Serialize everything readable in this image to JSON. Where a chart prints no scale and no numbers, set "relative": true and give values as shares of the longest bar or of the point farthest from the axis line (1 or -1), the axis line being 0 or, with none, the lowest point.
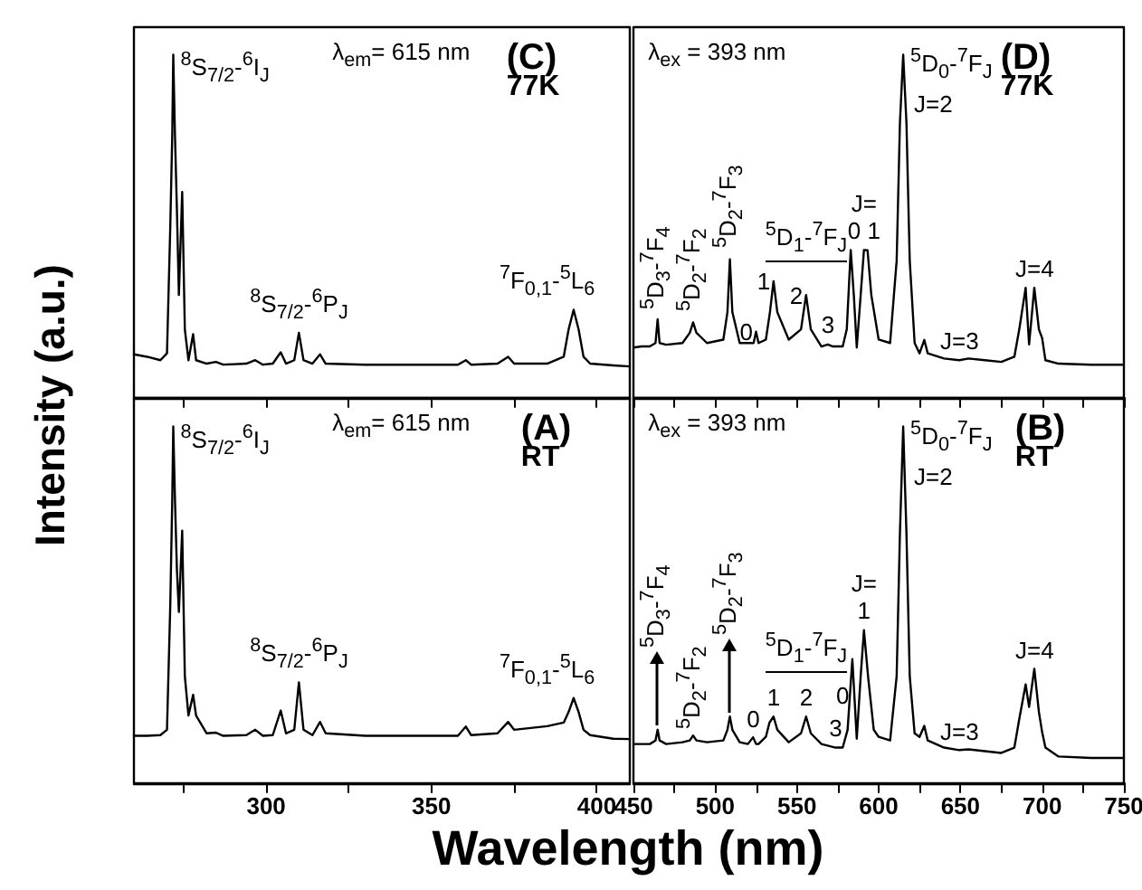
{
  "chart_data": [
    {
      "type": "line",
      "relative": true,
      "title": "(C)",
      "subtitle": "77K",
      "ylabel": "Intensity (a.u.)",
      "xlim": [
        260,
        410
      ],
      "xticks": [
        {
          "value": 275,
          "label": null
        },
        {
          "value": 300,
          "label": null
        },
        {
          "value": 325,
          "label": null
        },
        {
          "value": 350,
          "label": null
        },
        {
          "value": 375,
          "label": null
        },
        {
          "value": 400,
          "label": null
        }
      ],
      "tick_labels": false,
      "grid": false,
      "marker": "none",
      "line_style": "solid",
      "series": [
        {
          "color": "#000000",
          "x": [
            260,
            264,
            268,
            270,
            271,
            271.6,
            271.9,
            272.4,
            273,
            273.6,
            274.6,
            275.4,
            276.5,
            277.9,
            278.8,
            282,
            284.8,
            287,
            294,
            296.7,
            299,
            302,
            304.4,
            306,
            308.5,
            309.9,
            311.3,
            314,
            316.3,
            318,
            330,
            350,
            358,
            360.4,
            362,
            370,
            373.2,
            375,
            385,
            390,
            391.5,
            393,
            394.5,
            396,
            398,
            405,
            410
          ],
          "values": [
            0.127,
            0.12,
            0.11,
            0.13,
            0.5,
            0.77,
            1.0,
            0.77,
            0.55,
            0.3,
            0.6,
            0.2,
            0.11,
            0.186,
            0.11,
            0.1,
            0.105,
            0.097,
            0.1,
            0.11,
            0.097,
            0.1,
            0.133,
            0.1,
            0.11,
            0.19,
            0.11,
            0.1,
            0.127,
            0.1,
            0.097,
            0.097,
            0.097,
            0.11,
            0.097,
            0.1,
            0.12,
            0.1,
            0.1,
            0.12,
            0.2,
            0.257,
            0.2,
            0.12,
            0.1,
            0.095,
            0.092
          ]
        }
      ],
      "annotations": [
        {
          "text": "$^{8}$S$_{7/2}$-$^{6}$I$_{J}$",
          "x": 271.9,
          "y": 1.0
        },
        "λ$_{em}$= 615 nm",
        {
          "text": "$^{8}$S$_{7/2}$-$^{6}$P$_{J}$",
          "x": 309.9,
          "y": 0.19
        },
        {
          "text": "$^{7}$F$_{0,1}$-$^{5}$L$_{6}$",
          "x": 393,
          "y": 0.257
        }
      ]
    },
    {
      "type": "line",
      "relative": true,
      "title": "(D)",
      "subtitle": "77K",
      "xlim": [
        450,
        750
      ],
      "xticks": [
        {
          "value": 450,
          "label": null
        },
        {
          "value": 475,
          "label": null
        },
        {
          "value": 500,
          "label": null
        },
        {
          "value": 525,
          "label": null
        },
        {
          "value": 550,
          "label": null
        },
        {
          "value": 575,
          "label": null
        },
        {
          "value": 600,
          "label": null
        },
        {
          "value": 625,
          "label": null
        },
        {
          "value": 650,
          "label": null
        },
        {
          "value": 675,
          "label": null
        },
        {
          "value": 700,
          "label": null
        },
        {
          "value": 725,
          "label": null
        },
        {
          "value": 750,
          "label": null
        }
      ],
      "tick_labels": false,
      "grid": false,
      "marker": "none",
      "line_style": "solid",
      "series": [
        {
          "color": "#000000",
          "x": [
            450,
            455,
            460,
            463.5,
            464.8,
            466,
            470,
            480,
            484.5,
            486.5,
            488.5,
            495,
            505,
            507.5,
            509,
            510.5,
            515,
            520,
            523.5,
            525,
            526.5,
            531,
            533.5,
            535.7,
            538,
            545,
            552.5,
            555.6,
            558.5,
            565,
            568.9,
            572,
            578,
            580.5,
            582.9,
            584.8,
            586.6,
            589,
            591,
            593.2,
            595.5,
            600,
            607,
            611,
            613,
            615,
            617,
            619,
            622,
            625,
            627.9,
            630,
            640,
            649.3,
            655,
            665,
            675,
            683,
            686,
            689.9,
            692,
            695.2,
            698,
            700,
            702,
            710,
            730,
            750
          ],
          "values": [
            0.147,
            0.15,
            0.15,
            0.16,
            0.229,
            0.16,
            0.155,
            0.16,
            0.19,
            0.22,
            0.19,
            0.16,
            0.17,
            0.25,
            0.404,
            0.25,
            0.16,
            0.16,
            0.16,
            0.193,
            0.16,
            0.17,
            0.25,
            0.34,
            0.25,
            0.17,
            0.2,
            0.3,
            0.2,
            0.15,
            0.156,
            0.15,
            0.15,
            0.2,
            0.431,
            0.3,
            0.147,
            0.3,
            0.431,
            0.43,
            0.3,
            0.17,
            0.16,
            0.4,
            0.8,
            1.0,
            0.8,
            0.4,
            0.16,
            0.13,
            0.169,
            0.13,
            0.115,
            0.11,
            0.115,
            0.11,
            0.105,
            0.12,
            0.2,
            0.321,
            0.156,
            0.321,
            0.2,
            0.174,
            0.11,
            0.1,
            0.097,
            0.097
          ]
        }
      ],
      "annotations": [
        {
          "text": "$^{5}$D$_{3}$-$^{7}$F$_{4}$",
          "x": 464.8,
          "y": 0.229
        },
        {
          "text": "$^{5}$D$_{2}$-$^{7}$F$_{2}$",
          "x": 486.5,
          "y": 0.22
        },
        {
          "text": "$^{5}$D$_{2}$-$^{7}$F$_{3}$",
          "x": 509,
          "y": 0.404
        },
        {
          "text": "$^{5}$D$_{1}$-$^{7}$F$_{J}$",
          "x": 555.6,
          "y": 0.3
        },
        {
          "text": "0",
          "x": 525,
          "y": 0.193
        },
        {
          "text": "1",
          "x": 535.7,
          "y": 0.34
        },
        {
          "text": "2",
          "x": 555.6,
          "y": 0.3
        },
        {
          "text": "3",
          "x": 568.9,
          "y": 0.156
        },
        {
          "text": "J=\n0 1",
          "x": 591,
          "y": 0.431
        },
        {
          "text": "J=2",
          "x": 615,
          "y": 1.0
        },
        {
          "text": "$^{5}$D$_{0}$-$^{7}$F$_{J}$",
          "x": 615,
          "y": 1.0
        },
        {
          "text": "J=3",
          "x": 649.3,
          "y": 0.11
        },
        {
          "text": "J=4",
          "x": 695.2,
          "y": 0.321
        },
        "λ$_{ex}$ = 393 nm"
      ]
    },
    {
      "type": "line",
      "relative": true,
      "title": "(A)",
      "subtitle": "RT",
      "xlabel": "Wavelength (nm)",
      "xlim": [
        260,
        410
      ],
      "xticks": [
        {
          "value": 275,
          "label": null
        },
        300,
        {
          "value": 325,
          "label": null
        },
        350,
        {
          "value": 375,
          "label": null
        },
        400
      ],
      "tick_labels": "x",
      "grid": false,
      "marker": "none",
      "line_style": "solid",
      "series": [
        {
          "color": "#000000",
          "x": [
            260,
            264,
            268,
            270,
            271,
            271.6,
            271.9,
            272.4,
            273,
            273.6,
            274.6,
            275.4,
            276.5,
            277.9,
            278.8,
            282,
            284.8,
            287,
            294,
            296.7,
            299,
            302,
            304.4,
            306,
            308.5,
            309.9,
            311.3,
            314,
            316.3,
            318,
            330,
            350,
            358,
            360.4,
            362,
            370,
            373.2,
            375,
            385,
            390,
            391.5,
            393,
            394.5,
            396,
            398,
            405,
            410
          ],
          "values": [
            0.133,
            0.133,
            0.135,
            0.15,
            0.5,
            0.8,
            1.0,
            0.8,
            0.6,
            0.48,
            0.708,
            0.3,
            0.19,
            0.248,
            0.19,
            0.14,
            0.142,
            0.133,
            0.135,
            0.15,
            0.133,
            0.135,
            0.204,
            0.14,
            0.15,
            0.283,
            0.15,
            0.135,
            0.172,
            0.14,
            0.133,
            0.133,
            0.133,
            0.159,
            0.135,
            0.14,
            0.172,
            0.15,
            0.16,
            0.17,
            0.2,
            0.239,
            0.2,
            0.15,
            0.135,
            0.125,
            0.124
          ]
        }
      ],
      "annotations": [
        {
          "text": "$^{8}$S$_{7/2}$-$^{6}$I$_{J}$",
          "x": 271.9,
          "y": 1.0
        },
        "λ$_{em}$= 615 nm",
        {
          "text": "$^{8}$S$_{7/2}$-$^{6}$P$_{J}$",
          "x": 309.9,
          "y": 0.283
        },
        {
          "text": "$^{7}$F$_{0,1}$-$^{5}$L$_{6}$",
          "x": 393,
          "y": 0.239
        }
      ]
    },
    {
      "type": "line",
      "relative": true,
      "title": "(B)",
      "subtitle": "RT",
      "xlim": [
        450,
        750
      ],
      "xticks": [
        450,
        {
          "value": 475,
          "label": null
        },
        500,
        {
          "value": 525,
          "label": null
        },
        550,
        {
          "value": 575,
          "label": null
        },
        600,
        {
          "value": 625,
          "label": null
        },
        650,
        {
          "value": 675,
          "label": null
        },
        700,
        {
          "value": 725,
          "label": null
        },
        750
      ],
      "tick_labels": "x",
      "grid": false,
      "marker": "none",
      "line_style": "solid",
      "series": [
        {
          "color": "#000000",
          "x": [
            450,
            455,
            460,
            463.5,
            464.8,
            466,
            470,
            480,
            484.5,
            486.5,
            488.5,
            495,
            505,
            507.5,
            509,
            510.5,
            515,
            520,
            523.2,
            525,
            526.5,
            531,
            533.2,
            535.7,
            538,
            545,
            552.5,
            555.6,
            558.5,
            565,
            573.6,
            578,
            581,
            583.9,
            586.6,
            589,
            591,
            593.5,
            597,
            600,
            607,
            611,
            613,
            615,
            617,
            619,
            622,
            625,
            627.9,
            630,
            640,
            649.3,
            655,
            665,
            675,
            683,
            686,
            689.9,
            692,
            695.2,
            698,
            700,
            702,
            710,
            730,
            750
          ],
          "values": [
            0.11,
            0.11,
            0.11,
            0.12,
            0.15,
            0.12,
            0.11,
            0.115,
            0.12,
            0.134,
            0.12,
            0.115,
            0.12,
            0.15,
            0.187,
            0.15,
            0.115,
            0.11,
            0.129,
            0.11,
            0.11,
            0.13,
            0.17,
            0.187,
            0.15,
            0.115,
            0.14,
            0.187,
            0.14,
            0.11,
            0.1,
            0.1,
            0.15,
            0.348,
            0.125,
            0.3,
            0.429,
            0.3,
            0.15,
            0.13,
            0.12,
            0.3,
            0.7,
            1.0,
            0.7,
            0.3,
            0.14,
            0.13,
            0.161,
            0.12,
            0.1,
            0.093,
            0.095,
            0.09,
            0.085,
            0.1,
            0.18,
            0.277,
            0.214,
            0.321,
            0.2,
            0.143,
            0.1,
            0.075,
            0.071,
            0.071
          ]
        }
      ],
      "annotations": [
        {
          "text": "$^{5}$D$_{3}$-$^{7}$F$_{4}$",
          "x": 464.8,
          "y": 0.15
        },
        {
          "text": "$^{5}$D$_{2}$-$^{7}$F$_{2}$",
          "x": 486.5,
          "y": 0.134
        },
        {
          "text": "$^{5}$D$_{2}$-$^{7}$F$_{3}$",
          "x": 509,
          "y": 0.187
        },
        {
          "text": "$^{5}$D$_{1}$-$^{7}$F$_{J}$",
          "x": 555.6,
          "y": 0.187
        },
        {
          "text": "0",
          "x": 523.2,
          "y": 0.129
        },
        {
          "text": "1",
          "x": 535.7,
          "y": 0.187
        },
        {
          "text": "2",
          "x": 555.6,
          "y": 0.187
        },
        {
          "text": "3",
          "x": 573.6,
          "y": 0.1
        },
        {
          "text": "J=\n1",
          "x": 591,
          "y": 0.429
        },
        {
          "text": "0",
          "x": 583.9,
          "y": 0.348
        },
        {
          "text": "$^{5}$D$_{0}$-$^{7}$F$_{J}$",
          "x": 615,
          "y": 1.0
        },
        {
          "text": "J=2",
          "x": 615,
          "y": 1.0
        },
        {
          "text": "J=3",
          "x": 649.3,
          "y": 0.093
        },
        {
          "text": "J=4",
          "x": 695.2,
          "y": 0.321
        },
        "λ$_{ex}$ = 393 nm"
      ]
    }
  ]
}
